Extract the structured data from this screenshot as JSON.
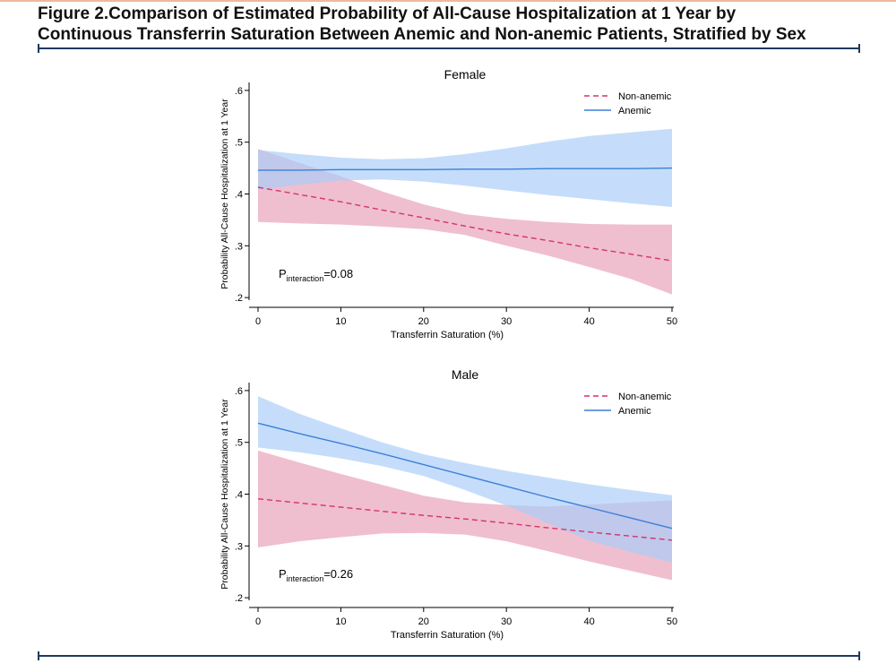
{
  "figure": {
    "title_line1": "Figure 2.Comparison of Estimated Probability of All-Cause Hospitalization at 1 Year by",
    "title_line2": "Continuous Transferrin Saturation Between Anemic and Non-anemic Patients, Stratified by Sex"
  },
  "colors": {
    "non_anemic": "#d6336c",
    "non_anemic_band": "#e8a0b8",
    "anemic": "#3d7fd9",
    "anemic_band": "#a9cdf7"
  },
  "chart_data": [
    {
      "type": "line",
      "title": "Female",
      "xlabel": "Transferrin Saturation (%)",
      "ylabel": "Probability All-Cause Hospitalization at 1 Year",
      "xlim": [
        0,
        50
      ],
      "ylim": [
        0.195,
        0.605
      ],
      "xticks": [
        0,
        10,
        20,
        30,
        40,
        50
      ],
      "xtick_labels": [
        "0",
        "10",
        "20",
        "30",
        "40",
        "50"
      ],
      "yticks": [
        0.2,
        0.3,
        0.4,
        0.5,
        0.6
      ],
      "ytick_labels": [
        ".2",
        ".3",
        ".4",
        ".5",
        ".6"
      ],
      "legend_position": "top-right",
      "annotation": {
        "prefix": "P",
        "subscript": "interaction",
        "suffix": "=0.08"
      },
      "series": [
        {
          "name": "Non-anemic",
          "style": "dashed",
          "x": [
            0,
            5,
            10,
            15,
            20,
            25,
            30,
            35,
            40,
            45,
            50
          ],
          "y": [
            0.413,
            0.399,
            0.385,
            0.369,
            0.354,
            0.338,
            0.323,
            0.31,
            0.296,
            0.284,
            0.271
          ],
          "lower": [
            0.346,
            0.343,
            0.341,
            0.337,
            0.332,
            0.321,
            0.3,
            0.281,
            0.259,
            0.236,
            0.206
          ],
          "upper": [
            0.487,
            0.46,
            0.434,
            0.405,
            0.38,
            0.361,
            0.352,
            0.346,
            0.342,
            0.341,
            0.341
          ]
        },
        {
          "name": "Anemic",
          "style": "solid",
          "x": [
            0,
            5,
            10,
            15,
            20,
            25,
            30,
            35,
            40,
            45,
            50
          ],
          "y": [
            0.446,
            0.446,
            0.447,
            0.447,
            0.447,
            0.448,
            0.448,
            0.449,
            0.449,
            0.449,
            0.45
          ],
          "lower": [
            0.408,
            0.418,
            0.426,
            0.428,
            0.424,
            0.416,
            0.407,
            0.398,
            0.39,
            0.382,
            0.375
          ],
          "upper": [
            0.485,
            0.477,
            0.47,
            0.467,
            0.469,
            0.477,
            0.488,
            0.501,
            0.512,
            0.519,
            0.526
          ]
        }
      ]
    },
    {
      "type": "line",
      "title": "Male",
      "xlabel": "Transferrin Saturation (%)",
      "ylabel": "Probability All-Cause Hospitalization at 1 Year",
      "xlim": [
        0,
        50
      ],
      "ylim": [
        0.195,
        0.605
      ],
      "xticks": [
        0,
        10,
        20,
        30,
        40,
        50
      ],
      "xtick_labels": [
        "0",
        "10",
        "20",
        "30",
        "40",
        "50"
      ],
      "yticks": [
        0.2,
        0.3,
        0.4,
        0.5,
        0.6
      ],
      "ytick_labels": [
        ".2",
        ".3",
        ".4",
        ".5",
        ".6"
      ],
      "legend_position": "top-right",
      "annotation": {
        "prefix": "P",
        "subscript": "interaction",
        "suffix": "=0.26"
      },
      "series": [
        {
          "name": "Non-anemic",
          "style": "dashed",
          "x": [
            0,
            5,
            10,
            15,
            20,
            25,
            30,
            35,
            40,
            45,
            50
          ],
          "y": [
            0.391,
            0.383,
            0.375,
            0.367,
            0.359,
            0.352,
            0.344,
            0.335,
            0.327,
            0.319,
            0.311
          ],
          "lower": [
            0.297,
            0.309,
            0.317,
            0.324,
            0.325,
            0.322,
            0.309,
            0.29,
            0.27,
            0.252,
            0.234
          ],
          "upper": [
            0.484,
            0.461,
            0.439,
            0.418,
            0.397,
            0.384,
            0.379,
            0.376,
            0.38,
            0.384,
            0.388
          ]
        },
        {
          "name": "Anemic",
          "style": "solid",
          "x": [
            0,
            5,
            10,
            15,
            20,
            25,
            30,
            35,
            40,
            45,
            50
          ],
          "y": [
            0.537,
            0.517,
            0.498,
            0.478,
            0.457,
            0.436,
            0.415,
            0.394,
            0.374,
            0.354,
            0.334
          ],
          "lower": [
            0.49,
            0.481,
            0.469,
            0.454,
            0.435,
            0.408,
            0.378,
            0.344,
            0.31,
            0.288,
            0.268
          ],
          "upper": [
            0.589,
            0.555,
            0.527,
            0.5,
            0.477,
            0.46,
            0.445,
            0.432,
            0.419,
            0.408,
            0.398
          ]
        }
      ]
    }
  ]
}
